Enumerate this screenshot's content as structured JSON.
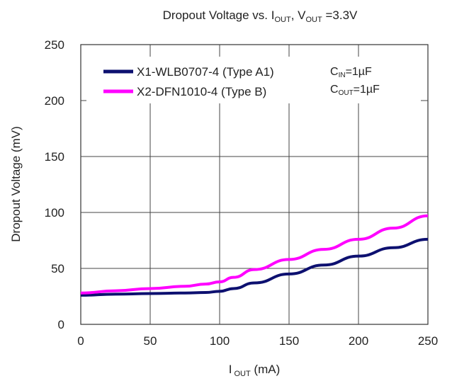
{
  "chart_data": {
    "type": "line",
    "title": {
      "text": "Dropout Voltage vs. I",
      "sub1": "OUT",
      "mid": ", V",
      "sub2": "OUT",
      "tail": " =3.3V"
    },
    "xlabel": {
      "main": "I",
      "sub": "OUT",
      "unit": " (mA)"
    },
    "ylabel": "Dropout Voltage (mV)",
    "xlim": [
      0,
      250
    ],
    "ylim": [
      0,
      250
    ],
    "xticks": [
      0,
      50,
      100,
      150,
      200,
      250
    ],
    "yticks": [
      0,
      50,
      100,
      150,
      200,
      250
    ],
    "grid": true,
    "legend_position": "top-left",
    "annotations": {
      "cin": {
        "main": "C",
        "sub": "IN",
        "tail": "=1µF"
      },
      "cout": {
        "main": "C",
        "sub": "OUT",
        "tail": "=1µF"
      }
    },
    "series": [
      {
        "name": "X1-WLB0707-4 (Type A1)",
        "color": "#0d1070",
        "x": [
          0,
          25,
          50,
          75,
          90,
          100,
          110,
          125,
          150,
          175,
          200,
          225,
          250
        ],
        "y": [
          26,
          27,
          27.5,
          28,
          28.5,
          29.5,
          32,
          37,
          45,
          53,
          61,
          68.5,
          76
        ]
      },
      {
        "name": "X2-DFN1010-4 (Type B)",
        "color": "#ff00ff",
        "x": [
          0,
          25,
          50,
          75,
          90,
          100,
          110,
          125,
          150,
          175,
          200,
          225,
          250
        ],
        "y": [
          28,
          30,
          32,
          34,
          36,
          38,
          42,
          49,
          58,
          67,
          76,
          86,
          97
        ]
      }
    ]
  }
}
